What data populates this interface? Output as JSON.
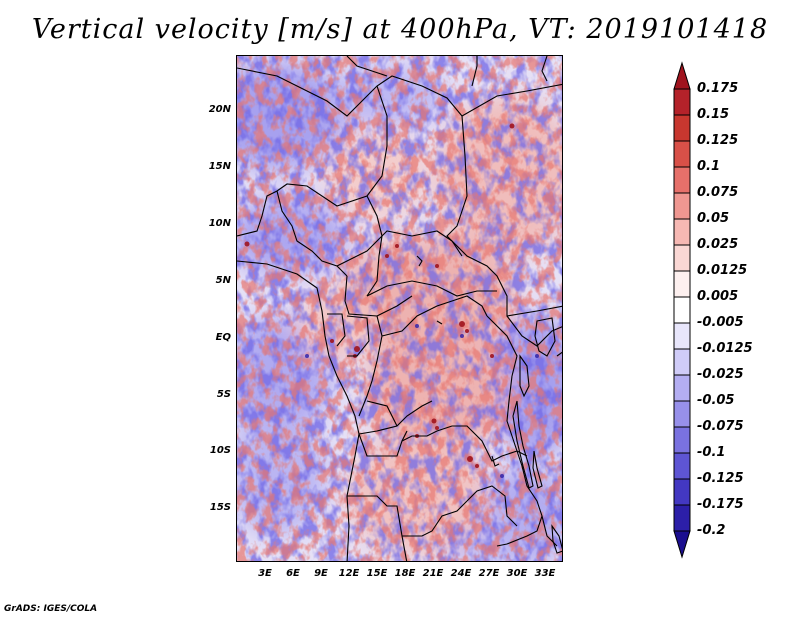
{
  "title": "Vertical velocity [m/s] at 400hPa, VT: 2019101418",
  "footer": "GrADS: IGES/COLA",
  "lat_labels": [
    "20N",
    "15N",
    "10N",
    "5N",
    "EQ",
    "5S",
    "10S",
    "15S"
  ],
  "lon_labels": [
    "3E",
    "6E",
    "9E",
    "12E",
    "15E",
    "18E",
    "21E",
    "24E",
    "27E",
    "30E",
    "33E"
  ],
  "colorbar": {
    "labels": [
      "0.175",
      "0.15",
      "0.125",
      "0.1",
      "0.075",
      "0.05",
      "0.025",
      "0.0125",
      "0.005",
      "-0.005",
      "-0.0125",
      "-0.025",
      "-0.05",
      "-0.075",
      "-0.1",
      "-0.125",
      "-0.175",
      "-0.2"
    ],
    "colors": [
      "#a0141e",
      "#b4222a",
      "#c8372f",
      "#d85048",
      "#e6706a",
      "#ef9791",
      "#f6b8b3",
      "#fad7d4",
      "#fdf0ef",
      "#ffffff",
      "#e8e6fb",
      "#d0ccf8",
      "#b4aef2",
      "#9790ea",
      "#7a72e0",
      "#5e55d4",
      "#4338c2",
      "#2c1fa8",
      "#1b0e8f"
    ]
  }
}
